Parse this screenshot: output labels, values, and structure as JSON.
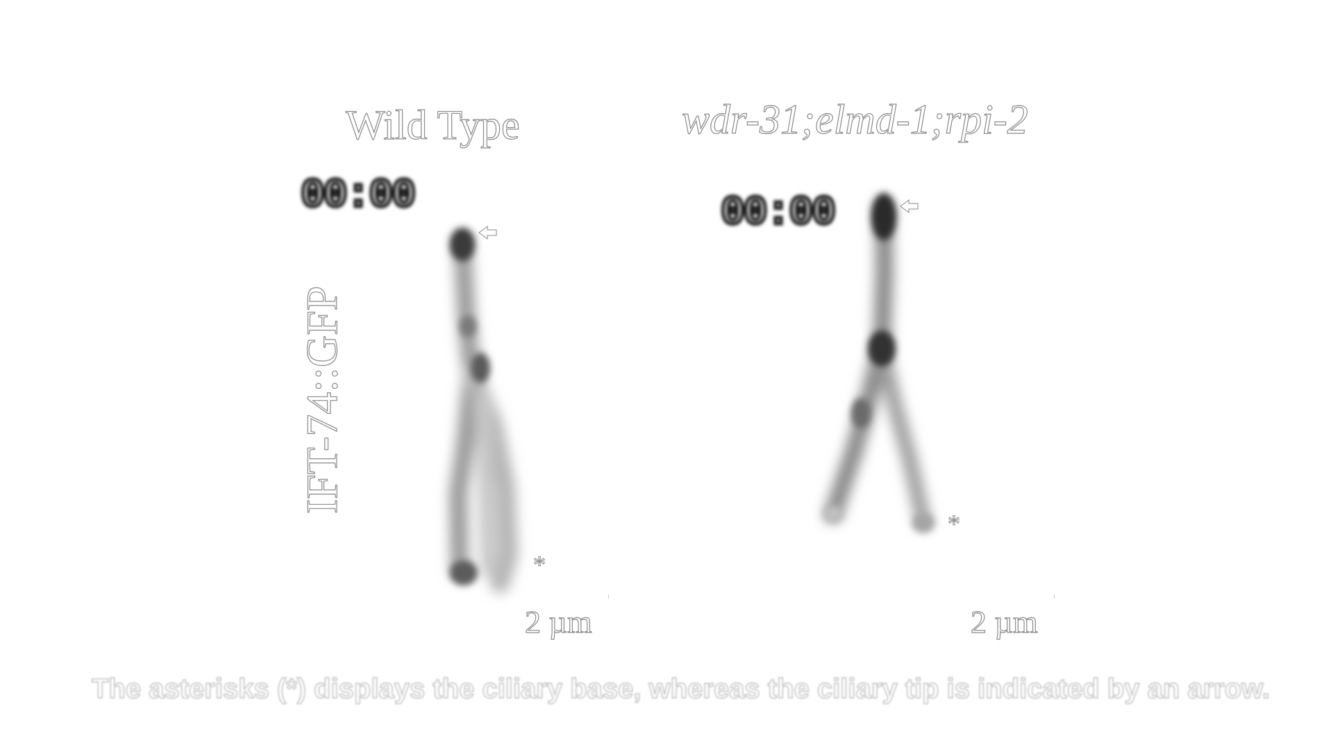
{
  "panels": [
    {
      "title": "Wild Type",
      "timestamp": "00:00",
      "scale_bar": "2 µm",
      "base_marker": "*"
    },
    {
      "title": "wdr-31;elmd-1;rpi-2",
      "timestamp": "00:00",
      "scale_bar": "2 µm",
      "base_marker": "*"
    }
  ],
  "row_label": "IFT-74::GFP",
  "caption": "The asterisks (*) displays the ciliary base, whereas the ciliary tip is indicated by an arrow."
}
